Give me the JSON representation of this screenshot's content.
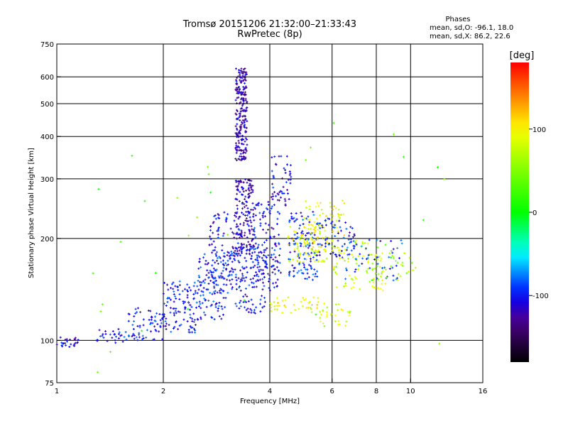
{
  "chart_data": {
    "type": "scatter",
    "title_line1": "Tromsø 20151206 21:32:00–21:33:43",
    "title_line2": "RwPretec (8p)",
    "stats": {
      "heading": "Phases",
      "o_line": "mean, sd,O: -96.1, 18.0",
      "x_line": "mean, sd,X:  86.2, 22.6"
    },
    "xlabel": "Frequency [MHz]",
    "ylabel": "Stationary phase Virtual Height [km]",
    "x_scale": "log",
    "y_scale": "log",
    "xlim": [
      1,
      16
    ],
    "ylim": [
      75,
      750
    ],
    "x_ticks": [
      1,
      2,
      4,
      6,
      8,
      10,
      16
    ],
    "y_ticks": [
      75,
      100,
      200,
      300,
      400,
      500,
      600,
      750
    ],
    "grid_x": [
      2,
      4,
      6,
      8,
      10
    ],
    "grid_y": [
      100,
      200,
      300,
      400,
      500,
      600
    ],
    "colorbar": {
      "label": "[deg]",
      "range": [
        -180,
        180
      ],
      "ticks": [
        100,
        0,
        -100
      ],
      "colors": [
        "#ff0000",
        "#ff8000",
        "#ffff00",
        "#00ff00",
        "#00ffff",
        "#0000ff",
        "#000000"
      ]
    },
    "clusters": [
      {
        "f": [
          1.0,
          1.15
        ],
        "h": [
          95,
          103
        ],
        "phase": -110,
        "n": 25
      },
      {
        "f": [
          1.3,
          1.55
        ],
        "h": [
          97,
          108
        ],
        "phase": -105,
        "n": 25
      },
      {
        "f": [
          1.55,
          2.0
        ],
        "h": [
          100,
          125
        ],
        "phase": -100,
        "n": 70
      },
      {
        "f": [
          2.0,
          2.5
        ],
        "h": [
          105,
          150
        ],
        "phase": -100,
        "n": 110
      },
      {
        "f": [
          2.5,
          3.0
        ],
        "h": [
          115,
          180
        ],
        "phase": -95,
        "n": 120
      },
      {
        "f": [
          2.7,
          3.3
        ],
        "h": [
          150,
          240
        ],
        "phase": -105,
        "n": 100
      },
      {
        "f": [
          3.2,
          3.45
        ],
        "h": [
          340,
          640
        ],
        "phase": -120,
        "n": 230
      },
      {
        "f": [
          3.2,
          3.6
        ],
        "h": [
          180,
          300
        ],
        "phase": -120,
        "n": 160
      },
      {
        "f": [
          3.0,
          3.9
        ],
        "h": [
          120,
          190
        ],
        "phase": -100,
        "n": 140
      },
      {
        "f": [
          3.6,
          4.3
        ],
        "h": [
          140,
          260
        ],
        "phase": -105,
        "n": 140
      },
      {
        "f": [
          4.0,
          4.6
        ],
        "h": [
          250,
          350
        ],
        "phase": -110,
        "n": 50
      },
      {
        "f": [
          4.5,
          5.5
        ],
        "h": [
          150,
          240
        ],
        "phase": -95,
        "n": 120
      },
      {
        "f": [
          4.5,
          5.8
        ],
        "h": [
          170,
          220
        ],
        "phase": 90,
        "n": 80
      },
      {
        "f": [
          5.0,
          6.5
        ],
        "h": [
          180,
          260
        ],
        "phase": 95,
        "n": 80
      },
      {
        "f": [
          5.5,
          7.0
        ],
        "h": [
          175,
          230
        ],
        "phase": -100,
        "n": 60
      },
      {
        "f": [
          6.0,
          8.5
        ],
        "h": [
          140,
          200
        ],
        "phase": 80,
        "n": 80
      },
      {
        "f": [
          6.5,
          9.5
        ],
        "h": [
          150,
          200
        ],
        "phase": -90,
        "n": 50
      },
      {
        "f": [
          7.5,
          10.5
        ],
        "h": [
          150,
          190
        ],
        "phase": 60,
        "n": 40
      },
      {
        "f": [
          4.0,
          5.5
        ],
        "h": [
          120,
          135
        ],
        "phase": 95,
        "n": 40
      },
      {
        "f": [
          5.5,
          6.8
        ],
        "h": [
          110,
          130
        ],
        "phase": 85,
        "n": 30
      },
      {
        "f": [
          1.2,
          12.5
        ],
        "h": [
          80,
          450
        ],
        "phase": 30,
        "n": 35
      }
    ]
  }
}
